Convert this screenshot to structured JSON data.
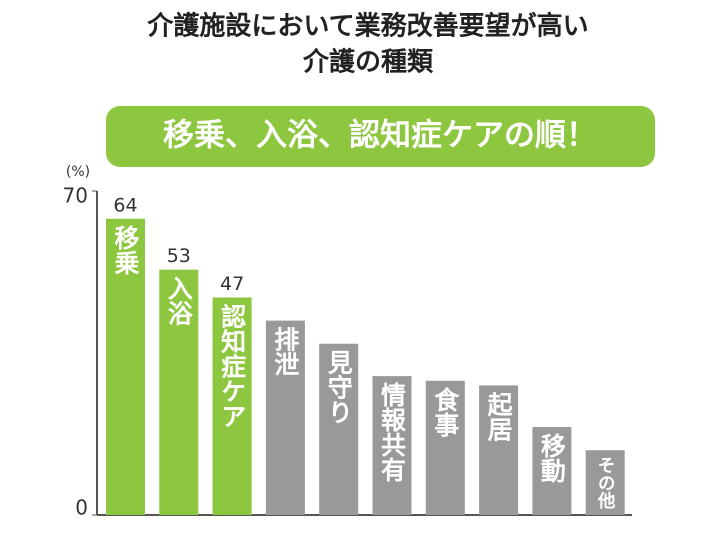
{
  "chart_data": {
    "type": "bar",
    "title": [
      "介護施設において業務改善要望が高い",
      "介護の種類"
    ],
    "subtitle": "移乗、入浴、認知症ケアの順！",
    "y_label": "(%)",
    "categories": [
      "移乗",
      "入浴",
      "認知症ケア",
      "排泄",
      "見守り",
      "情報共有",
      "食事",
      "起居",
      "移動",
      "その他"
    ],
    "values": [
      64,
      53,
      47,
      42,
      37,
      30,
      29,
      28,
      19,
      14
    ],
    "value_labels": [
      "64",
      "53",
      "47",
      null,
      null,
      null,
      null,
      null,
      null,
      null
    ],
    "colors": [
      "#8dc63f",
      "#8dc63f",
      "#8dc63f",
      "#999999",
      "#999999",
      "#999999",
      "#999999",
      "#999999",
      "#999999",
      "#999999"
    ],
    "banner_color": "#8dc63f",
    "ylim": [
      0,
      70
    ],
    "yticks": [
      0,
      70
    ],
    "grid": false
  }
}
